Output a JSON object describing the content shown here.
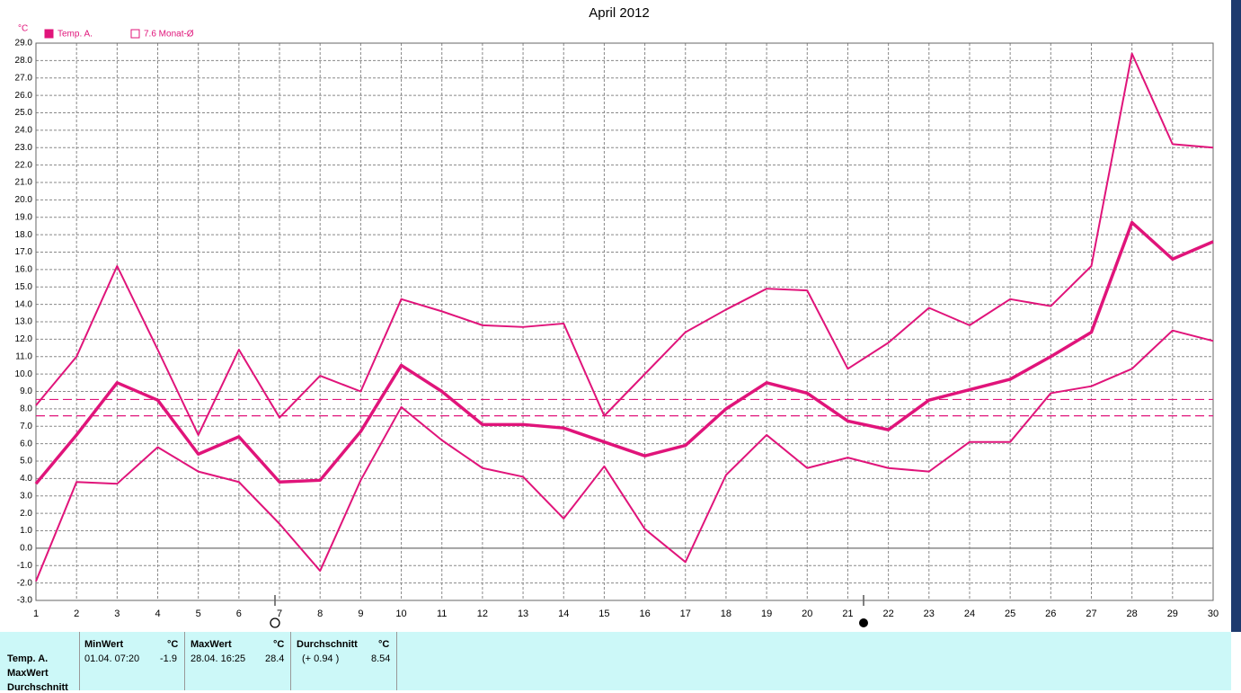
{
  "chart_data": {
    "type": "line",
    "title": "April 2012",
    "y_label": "°C",
    "x": [
      1,
      2,
      3,
      4,
      5,
      6,
      7,
      8,
      9,
      10,
      11,
      12,
      13,
      14,
      15,
      16,
      17,
      18,
      19,
      20,
      21,
      22,
      23,
      24,
      25,
      26,
      27,
      28,
      29,
      30
    ],
    "xlim": [
      1,
      30
    ],
    "xticks": [
      1,
      2,
      3,
      4,
      5,
      6,
      7,
      8,
      9,
      10,
      11,
      12,
      13,
      14,
      15,
      16,
      17,
      18,
      19,
      20,
      21,
      22,
      23,
      24,
      25,
      26,
      27,
      28,
      29,
      30
    ],
    "ylim": [
      -3,
      29
    ],
    "yticks": [
      {
        "value": -3,
        "label": "-3.0"
      },
      {
        "value": -2,
        "label": "-2.0"
      },
      {
        "value": -1,
        "label": "-1.0"
      },
      {
        "value": 0,
        "label": "0.0"
      },
      {
        "value": 1,
        "label": "1.0"
      },
      {
        "value": 2,
        "label": "2.0"
      },
      {
        "value": 3,
        "label": "3.0"
      },
      {
        "value": 4,
        "label": "4.0"
      },
      {
        "value": 5,
        "label": "5.0"
      },
      {
        "value": 6,
        "label": "6.0"
      },
      {
        "value": 7,
        "label": "7.0"
      },
      {
        "value": 8,
        "label": "8.0"
      },
      {
        "value": 9,
        "label": "9.0"
      },
      {
        "value": 10,
        "label": "10.0"
      },
      {
        "value": 11,
        "label": "11.0"
      },
      {
        "value": 12,
        "label": "12.0"
      },
      {
        "value": 13,
        "label": "13.0"
      },
      {
        "value": 14,
        "label": "14.0"
      },
      {
        "value": 15,
        "label": "15.0"
      },
      {
        "value": 16,
        "label": "16.0"
      },
      {
        "value": 17,
        "label": "17.0"
      },
      {
        "value": 18,
        "label": "18.0"
      },
      {
        "value": 19,
        "label": "19.0"
      },
      {
        "value": 20,
        "label": "20.0"
      },
      {
        "value": 21,
        "label": "21.0"
      },
      {
        "value": 22,
        "label": "22.0"
      },
      {
        "value": 23,
        "label": "23.0"
      },
      {
        "value": 24,
        "label": "24.0"
      },
      {
        "value": 25,
        "label": "25.0"
      },
      {
        "value": 26,
        "label": "26.0"
      },
      {
        "value": 27,
        "label": "27.0"
      },
      {
        "value": 28,
        "label": "28.0"
      },
      {
        "value": 29,
        "label": "29.0"
      }
    ],
    "grid": true,
    "series": [
      {
        "color": "#e0147a",
        "width": 2,
        "values": [
          8.2,
          11.0,
          16.2,
          11.4,
          6.5,
          11.4,
          7.5,
          9.9,
          9.0,
          14.3,
          13.6,
          12.8,
          12.7,
          12.9,
          7.6,
          10.0,
          12.4,
          13.7,
          14.9,
          14.8,
          10.3,
          11.8,
          13.8,
          12.8,
          14.3,
          13.9,
          16.2,
          28.4,
          23.2,
          23.0
        ]
      },
      {
        "name": "Temp. A.",
        "color": "#e0147a",
        "width": 3.5,
        "values": [
          3.7,
          6.5,
          9.5,
          8.5,
          5.4,
          6.4,
          3.8,
          3.9,
          6.7,
          10.5,
          9.0,
          7.1,
          7.1,
          6.9,
          6.1,
          5.3,
          5.9,
          8.0,
          9.5,
          8.9,
          7.3,
          6.8,
          8.5,
          9.1,
          9.7,
          11.0,
          12.4,
          18.7,
          16.6,
          17.6
        ]
      },
      {
        "color": "#e0147a",
        "width": 2,
        "values": [
          -1.9,
          3.8,
          3.7,
          5.8,
          4.4,
          3.8,
          1.4,
          -1.3,
          3.9,
          8.1,
          6.2,
          4.6,
          4.1,
          1.7,
          4.7,
          1.1,
          -0.8,
          4.2,
          6.5,
          4.6,
          5.2,
          4.6,
          4.4,
          6.1,
          6.1,
          8.9,
          9.3,
          10.3,
          12.5,
          11.9
        ]
      }
    ],
    "reference_lines": [
      {
        "value": 8.54,
        "color": "#e0147a"
      },
      {
        "value": 7.6,
        "color": "#e0147a",
        "name": "7.6 Monat-Ø"
      }
    ]
  },
  "table": {
    "row_labels": [
      "Temp. A.",
      "MaxWert",
      "Durchschnitt"
    ],
    "columns": [
      {
        "header": "MinWert",
        "unit": "°C",
        "time": "01.04.  07:20",
        "value": "-1.9"
      },
      {
        "header": "MaxWert",
        "unit": "°C",
        "time": "28.04.  16:25",
        "value": "28.4"
      },
      {
        "header": "Durchschnitt",
        "unit": "°C",
        "time": "(+ 0.94 )",
        "value": "8.54"
      }
    ]
  }
}
